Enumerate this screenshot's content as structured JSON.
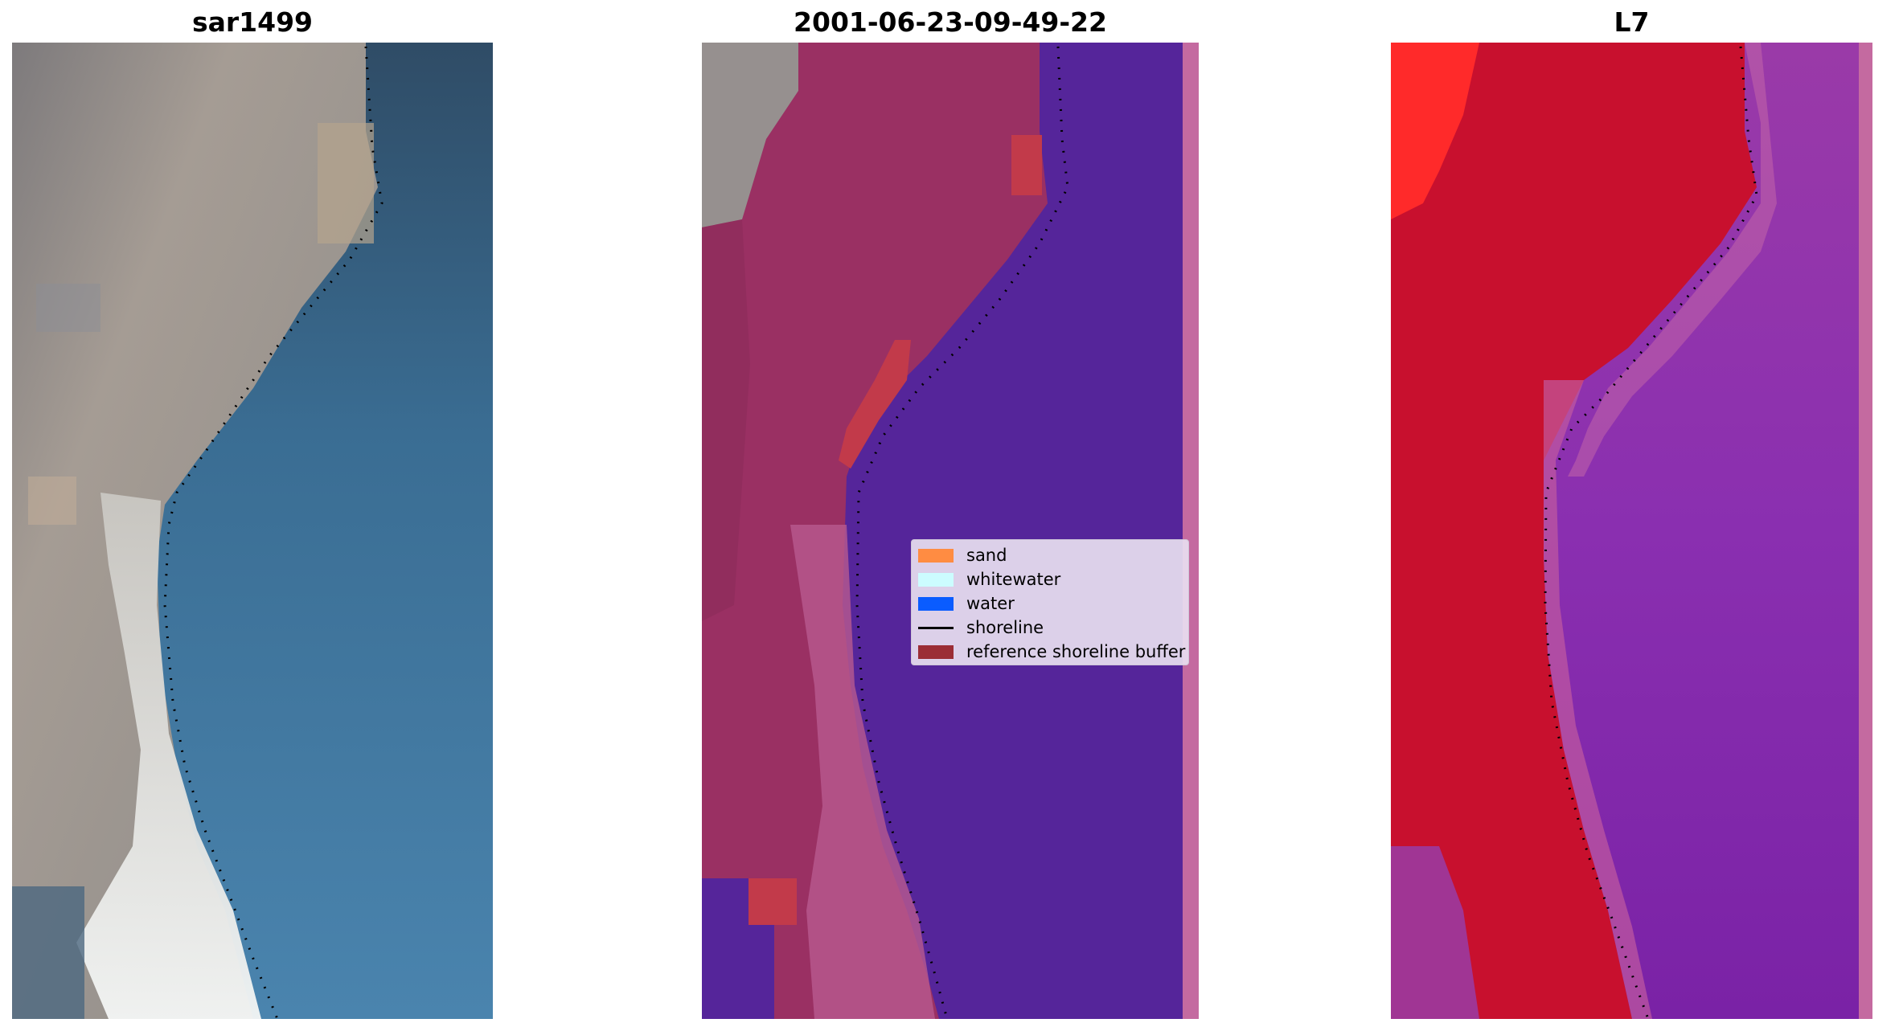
{
  "panels": [
    {
      "title": "sar1499"
    },
    {
      "title": "2001-06-23-09-49-22"
    },
    {
      "title": "L7"
    }
  ],
  "legend": {
    "items": [
      {
        "label": "sand",
        "color": "#ff8c42"
      },
      {
        "label": "whitewater",
        "color": "#ccfcff"
      },
      {
        "label": "water",
        "color": "#0a5cff"
      },
      {
        "label": "shoreline",
        "color": "#000000"
      },
      {
        "label": "reference shoreline buffer",
        "color": "#9b2d35"
      }
    ]
  },
  "colors": {
    "land_rgb": "#a39a93",
    "water_rgb": "#3b6a8c",
    "whitewater_rgb": "#dfe6ea",
    "sand_class_overlay": "#9a3063",
    "water_class": "#55259a",
    "buffer_red": "#c23a4a",
    "false_color_land": "#c8102e",
    "false_color_water": "#8a2fa8",
    "edge_strip": "#c46aa0"
  }
}
